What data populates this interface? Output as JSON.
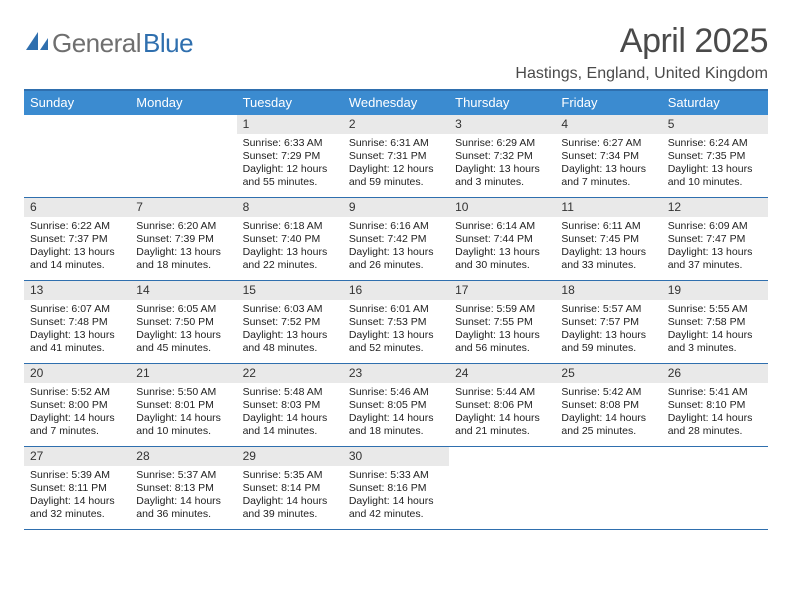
{
  "brand": {
    "gray": "General",
    "blue": "Blue"
  },
  "title": "April 2025",
  "location": "Hastings, England, United Kingdom",
  "colors": {
    "accent": "#2f6fae",
    "header_bg": "#3b8bd0",
    "daynum_bg": "#e9e9e9",
    "text": "#222222",
    "muted": "#4a4a4a"
  },
  "weekdays": [
    "Sunday",
    "Monday",
    "Tuesday",
    "Wednesday",
    "Thursday",
    "Friday",
    "Saturday"
  ],
  "weeks": [
    [
      {
        "n": "",
        "sr": "",
        "ss": "",
        "dl": ""
      },
      {
        "n": "",
        "sr": "",
        "ss": "",
        "dl": ""
      },
      {
        "n": "1",
        "sr": "Sunrise: 6:33 AM",
        "ss": "Sunset: 7:29 PM",
        "dl": "Daylight: 12 hours and 55 minutes."
      },
      {
        "n": "2",
        "sr": "Sunrise: 6:31 AM",
        "ss": "Sunset: 7:31 PM",
        "dl": "Daylight: 12 hours and 59 minutes."
      },
      {
        "n": "3",
        "sr": "Sunrise: 6:29 AM",
        "ss": "Sunset: 7:32 PM",
        "dl": "Daylight: 13 hours and 3 minutes."
      },
      {
        "n": "4",
        "sr": "Sunrise: 6:27 AM",
        "ss": "Sunset: 7:34 PM",
        "dl": "Daylight: 13 hours and 7 minutes."
      },
      {
        "n": "5",
        "sr": "Sunrise: 6:24 AM",
        "ss": "Sunset: 7:35 PM",
        "dl": "Daylight: 13 hours and 10 minutes."
      }
    ],
    [
      {
        "n": "6",
        "sr": "Sunrise: 6:22 AM",
        "ss": "Sunset: 7:37 PM",
        "dl": "Daylight: 13 hours and 14 minutes."
      },
      {
        "n": "7",
        "sr": "Sunrise: 6:20 AM",
        "ss": "Sunset: 7:39 PM",
        "dl": "Daylight: 13 hours and 18 minutes."
      },
      {
        "n": "8",
        "sr": "Sunrise: 6:18 AM",
        "ss": "Sunset: 7:40 PM",
        "dl": "Daylight: 13 hours and 22 minutes."
      },
      {
        "n": "9",
        "sr": "Sunrise: 6:16 AM",
        "ss": "Sunset: 7:42 PM",
        "dl": "Daylight: 13 hours and 26 minutes."
      },
      {
        "n": "10",
        "sr": "Sunrise: 6:14 AM",
        "ss": "Sunset: 7:44 PM",
        "dl": "Daylight: 13 hours and 30 minutes."
      },
      {
        "n": "11",
        "sr": "Sunrise: 6:11 AM",
        "ss": "Sunset: 7:45 PM",
        "dl": "Daylight: 13 hours and 33 minutes."
      },
      {
        "n": "12",
        "sr": "Sunrise: 6:09 AM",
        "ss": "Sunset: 7:47 PM",
        "dl": "Daylight: 13 hours and 37 minutes."
      }
    ],
    [
      {
        "n": "13",
        "sr": "Sunrise: 6:07 AM",
        "ss": "Sunset: 7:48 PM",
        "dl": "Daylight: 13 hours and 41 minutes."
      },
      {
        "n": "14",
        "sr": "Sunrise: 6:05 AM",
        "ss": "Sunset: 7:50 PM",
        "dl": "Daylight: 13 hours and 45 minutes."
      },
      {
        "n": "15",
        "sr": "Sunrise: 6:03 AM",
        "ss": "Sunset: 7:52 PM",
        "dl": "Daylight: 13 hours and 48 minutes."
      },
      {
        "n": "16",
        "sr": "Sunrise: 6:01 AM",
        "ss": "Sunset: 7:53 PM",
        "dl": "Daylight: 13 hours and 52 minutes."
      },
      {
        "n": "17",
        "sr": "Sunrise: 5:59 AM",
        "ss": "Sunset: 7:55 PM",
        "dl": "Daylight: 13 hours and 56 minutes."
      },
      {
        "n": "18",
        "sr": "Sunrise: 5:57 AM",
        "ss": "Sunset: 7:57 PM",
        "dl": "Daylight: 13 hours and 59 minutes."
      },
      {
        "n": "19",
        "sr": "Sunrise: 5:55 AM",
        "ss": "Sunset: 7:58 PM",
        "dl": "Daylight: 14 hours and 3 minutes."
      }
    ],
    [
      {
        "n": "20",
        "sr": "Sunrise: 5:52 AM",
        "ss": "Sunset: 8:00 PM",
        "dl": "Daylight: 14 hours and 7 minutes."
      },
      {
        "n": "21",
        "sr": "Sunrise: 5:50 AM",
        "ss": "Sunset: 8:01 PM",
        "dl": "Daylight: 14 hours and 10 minutes."
      },
      {
        "n": "22",
        "sr": "Sunrise: 5:48 AM",
        "ss": "Sunset: 8:03 PM",
        "dl": "Daylight: 14 hours and 14 minutes."
      },
      {
        "n": "23",
        "sr": "Sunrise: 5:46 AM",
        "ss": "Sunset: 8:05 PM",
        "dl": "Daylight: 14 hours and 18 minutes."
      },
      {
        "n": "24",
        "sr": "Sunrise: 5:44 AM",
        "ss": "Sunset: 8:06 PM",
        "dl": "Daylight: 14 hours and 21 minutes."
      },
      {
        "n": "25",
        "sr": "Sunrise: 5:42 AM",
        "ss": "Sunset: 8:08 PM",
        "dl": "Daylight: 14 hours and 25 minutes."
      },
      {
        "n": "26",
        "sr": "Sunrise: 5:41 AM",
        "ss": "Sunset: 8:10 PM",
        "dl": "Daylight: 14 hours and 28 minutes."
      }
    ],
    [
      {
        "n": "27",
        "sr": "Sunrise: 5:39 AM",
        "ss": "Sunset: 8:11 PM",
        "dl": "Daylight: 14 hours and 32 minutes."
      },
      {
        "n": "28",
        "sr": "Sunrise: 5:37 AM",
        "ss": "Sunset: 8:13 PM",
        "dl": "Daylight: 14 hours and 36 minutes."
      },
      {
        "n": "29",
        "sr": "Sunrise: 5:35 AM",
        "ss": "Sunset: 8:14 PM",
        "dl": "Daylight: 14 hours and 39 minutes."
      },
      {
        "n": "30",
        "sr": "Sunrise: 5:33 AM",
        "ss": "Sunset: 8:16 PM",
        "dl": "Daylight: 14 hours and 42 minutes."
      },
      {
        "n": "",
        "sr": "",
        "ss": "",
        "dl": ""
      },
      {
        "n": "",
        "sr": "",
        "ss": "",
        "dl": ""
      },
      {
        "n": "",
        "sr": "",
        "ss": "",
        "dl": ""
      }
    ]
  ]
}
